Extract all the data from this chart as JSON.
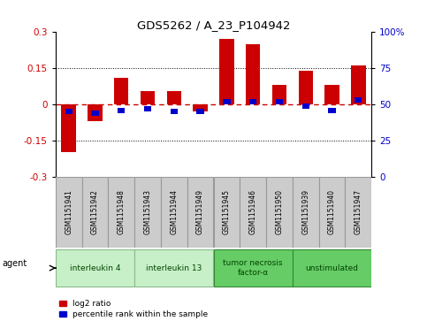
{
  "title": "GDS5262 / A_23_P104942",
  "samples": [
    "GSM1151941",
    "GSM1151942",
    "GSM1151948",
    "GSM1151943",
    "GSM1151944",
    "GSM1151949",
    "GSM1151945",
    "GSM1151946",
    "GSM1151950",
    "GSM1151939",
    "GSM1151940",
    "GSM1151947"
  ],
  "log2_ratio": [
    -0.2,
    -0.07,
    0.11,
    0.055,
    0.055,
    -0.03,
    0.27,
    0.25,
    0.08,
    0.14,
    0.08,
    0.16
  ],
  "percentile": [
    45,
    44,
    46,
    47,
    45,
    45,
    52,
    52,
    52,
    49,
    46,
    53
  ],
  "ylim_left": [
    -0.3,
    0.3
  ],
  "ylim_right": [
    0,
    100
  ],
  "yticks_left": [
    -0.3,
    -0.15,
    0,
    0.15,
    0.3
  ],
  "yticks_right": [
    0,
    25,
    50,
    75,
    100
  ],
  "agents": [
    {
      "label": "interleukin 4",
      "start": 0,
      "end": 2,
      "color": "#c8f0c8",
      "border": "#88bb88"
    },
    {
      "label": "interleukin 13",
      "start": 3,
      "end": 5,
      "color": "#c8f0c8",
      "border": "#88bb88"
    },
    {
      "label": "tumor necrosis\nfactor-α",
      "start": 6,
      "end": 8,
      "color": "#66cc66",
      "border": "#338833"
    },
    {
      "label": "unstimulated",
      "start": 9,
      "end": 11,
      "color": "#66cc66",
      "border": "#338833"
    }
  ],
  "bar_color_red": "#cc0000",
  "bar_color_blue": "#0000cc",
  "bar_width": 0.55,
  "background_color": "#ffffff",
  "tick_label_color_left": "#cc0000",
  "tick_label_color_right": "#0000cc",
  "zero_line_color": "#cc0000",
  "dotted_line_color": "#000000",
  "legend_log2": "log2 ratio",
  "legend_pct": "percentile rank within the sample",
  "sample_box_color": "#cccccc"
}
